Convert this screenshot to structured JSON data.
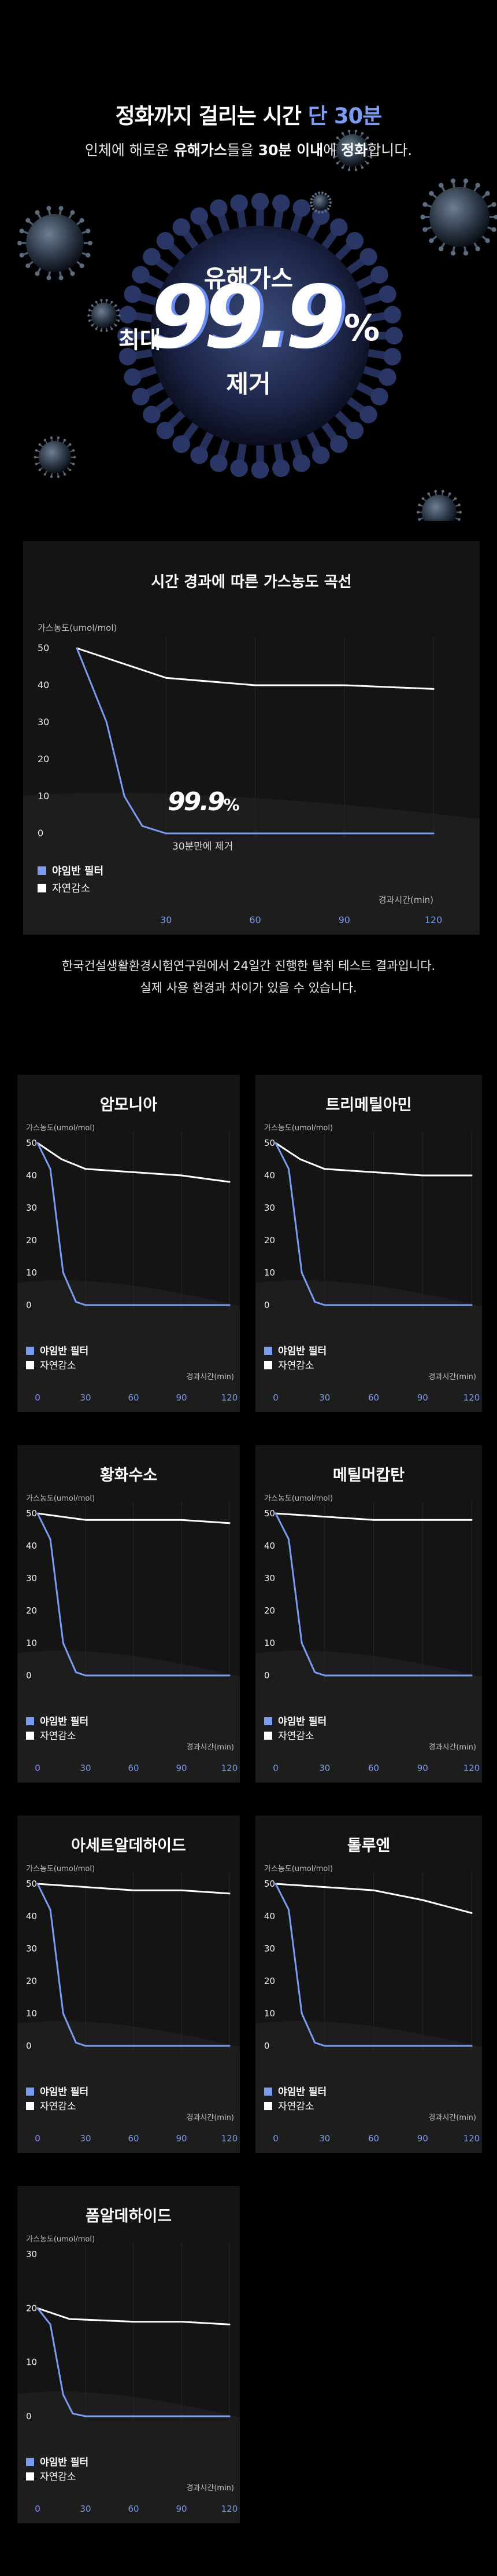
{
  "hero": {
    "title_main": "정화까지 걸리는 시간 ",
    "title_accent": "단 30분",
    "subtitle_pre": "인체에 해로운 ",
    "subtitle_b1": "유해가스",
    "subtitle_mid": "들을 ",
    "subtitle_b2": "30분 이내",
    "subtitle_mid2": "에 ",
    "subtitle_b3": "정화",
    "subtitle_post": "합니다.",
    "big_top": "유해가스",
    "big_left": "최대",
    "big_number": "99.9",
    "big_percent": "%",
    "big_bottom": "제거"
  },
  "main_chart": {
    "title": "시간 경과에 따른 가스농도 곡선",
    "badge_number": "99.9",
    "badge_percent": "%",
    "badge_caption": "30분만에 제거",
    "note_line1": "한국건설생활환경시험연구원에서 24일간 진행한 탈취 테스트 결과입니다.",
    "note_line2": "실제 사용 환경과 차이가 있을 수 있습니다."
  },
  "colors": {
    "filter": "#7b9cf2",
    "natural": "#ffffff",
    "card_bg": "#141414"
  },
  "chart_data": [
    {
      "type": "line",
      "title": "시간 경과에 따른 가스농도 곡선",
      "ylabel": "가스농도(umol/mol)",
      "xlabel": "경과시간(min)",
      "yticks": [
        0,
        10,
        20,
        30,
        40,
        50
      ],
      "xticks": [
        30,
        60,
        90,
        120
      ],
      "ylim": [
        0,
        50
      ],
      "xlim": [
        0,
        120
      ],
      "grid": true,
      "legend": "bottom-left",
      "series": [
        {
          "name": "야임반 필터",
          "points": [
            [
              0,
              50
            ],
            [
              10,
              30
            ],
            [
              16,
              10
            ],
            [
              22,
              2
            ],
            [
              30,
              0
            ],
            [
              60,
              0
            ],
            [
              90,
              0
            ],
            [
              120,
              0
            ]
          ]
        },
        {
          "name": "자연감소",
          "points": [
            [
              0,
              50
            ],
            [
              30,
              42
            ],
            [
              60,
              40
            ],
            [
              90,
              40
            ],
            [
              120,
              39
            ]
          ]
        }
      ]
    },
    {
      "type": "line",
      "title": "암모니아",
      "ylabel": "가스농도(umol/mol)",
      "xlabel": "경과시간(min)",
      "yticks": [
        0,
        10,
        20,
        30,
        40,
        50
      ],
      "xticks": [
        0,
        30,
        60,
        90,
        120
      ],
      "ylim": [
        0,
        50
      ],
      "xlim": [
        0,
        120
      ],
      "grid": true,
      "legend": "bottom-left",
      "series": [
        {
          "name": "야임반 필터",
          "points": [
            [
              0,
              50
            ],
            [
              8,
              42
            ],
            [
              16,
              10
            ],
            [
              24,
              1
            ],
            [
              30,
              0
            ],
            [
              60,
              0
            ],
            [
              90,
              0
            ],
            [
              120,
              0
            ]
          ]
        },
        {
          "name": "자연감소",
          "points": [
            [
              0,
              50
            ],
            [
              15,
              45
            ],
            [
              30,
              42
            ],
            [
              60,
              41
            ],
            [
              90,
              40
            ],
            [
              120,
              38
            ]
          ]
        }
      ]
    },
    {
      "type": "line",
      "title": "트리메틸아민",
      "ylabel": "가스농도(umol/mol)",
      "xlabel": "경과시간(min)",
      "yticks": [
        0,
        10,
        20,
        30,
        40,
        50
      ],
      "xticks": [
        0,
        30,
        60,
        90,
        120
      ],
      "ylim": [
        0,
        50
      ],
      "xlim": [
        0,
        120
      ],
      "grid": true,
      "legend": "bottom-left",
      "series": [
        {
          "name": "야임반 필터",
          "points": [
            [
              0,
              50
            ],
            [
              8,
              42
            ],
            [
              16,
              10
            ],
            [
              24,
              1
            ],
            [
              30,
              0
            ],
            [
              60,
              0
            ],
            [
              90,
              0
            ],
            [
              120,
              0
            ]
          ]
        },
        {
          "name": "자연감소",
          "points": [
            [
              0,
              50
            ],
            [
              15,
              45
            ],
            [
              30,
              42
            ],
            [
              60,
              41
            ],
            [
              90,
              40
            ],
            [
              120,
              40
            ]
          ]
        }
      ]
    },
    {
      "type": "line",
      "title": "황화수소",
      "ylabel": "가스농도(umol/mol)",
      "xlabel": "경과시간(min)",
      "yticks": [
        0,
        10,
        20,
        30,
        40,
        50
      ],
      "xticks": [
        0,
        30,
        60,
        90,
        120
      ],
      "ylim": [
        0,
        50
      ],
      "xlim": [
        0,
        120
      ],
      "grid": true,
      "legend": "bottom-left",
      "series": [
        {
          "name": "야임반 필터",
          "points": [
            [
              0,
              50
            ],
            [
              8,
              42
            ],
            [
              16,
              10
            ],
            [
              24,
              1
            ],
            [
              30,
              0
            ],
            [
              60,
              0
            ],
            [
              90,
              0
            ],
            [
              120,
              0
            ]
          ]
        },
        {
          "name": "자연감소",
          "points": [
            [
              0,
              50
            ],
            [
              30,
              48
            ],
            [
              60,
              48
            ],
            [
              90,
              48
            ],
            [
              120,
              47
            ]
          ]
        }
      ]
    },
    {
      "type": "line",
      "title": "메틸머캅탄",
      "ylabel": "가스농도(umol/mol)",
      "xlabel": "경과시간(min)",
      "yticks": [
        0,
        10,
        20,
        30,
        40,
        50
      ],
      "xticks": [
        0,
        30,
        60,
        90,
        120
      ],
      "ylim": [
        0,
        50
      ],
      "xlim": [
        0,
        120
      ],
      "grid": true,
      "legend": "bottom-left",
      "series": [
        {
          "name": "야임반 필터",
          "points": [
            [
              0,
              50
            ],
            [
              8,
              42
            ],
            [
              16,
              10
            ],
            [
              24,
              1
            ],
            [
              30,
              0
            ],
            [
              60,
              0
            ],
            [
              90,
              0
            ],
            [
              120,
              0
            ]
          ]
        },
        {
          "name": "자연감소",
          "points": [
            [
              0,
              50
            ],
            [
              30,
              49
            ],
            [
              60,
              48
            ],
            [
              90,
              48
            ],
            [
              120,
              48
            ]
          ]
        }
      ]
    },
    {
      "type": "line",
      "title": "아세트알데하이드",
      "ylabel": "가스농도(umol/mol)",
      "xlabel": "경과시간(min)",
      "yticks": [
        0,
        10,
        20,
        30,
        40,
        50
      ],
      "xticks": [
        0,
        30,
        60,
        90,
        120
      ],
      "ylim": [
        0,
        50
      ],
      "xlim": [
        0,
        120
      ],
      "grid": true,
      "legend": "bottom-left",
      "series": [
        {
          "name": "야임반 필터",
          "points": [
            [
              0,
              50
            ],
            [
              8,
              42
            ],
            [
              16,
              10
            ],
            [
              24,
              1
            ],
            [
              30,
              0
            ],
            [
              60,
              0
            ],
            [
              90,
              0
            ],
            [
              120,
              0
            ]
          ]
        },
        {
          "name": "자연감소",
          "points": [
            [
              0,
              50
            ],
            [
              30,
              49
            ],
            [
              60,
              48
            ],
            [
              90,
              48
            ],
            [
              120,
              47
            ]
          ]
        }
      ]
    },
    {
      "type": "line",
      "title": "톨루엔",
      "ylabel": "가스농도(umol/mol)",
      "xlabel": "경과시간(min)",
      "yticks": [
        0,
        10,
        20,
        30,
        40,
        50
      ],
      "xticks": [
        0,
        30,
        60,
        90,
        120
      ],
      "ylim": [
        0,
        50
      ],
      "xlim": [
        0,
        120
      ],
      "grid": true,
      "legend": "bottom-left",
      "series": [
        {
          "name": "야임반 필터",
          "points": [
            [
              0,
              50
            ],
            [
              8,
              42
            ],
            [
              16,
              10
            ],
            [
              24,
              1
            ],
            [
              30,
              0
            ],
            [
              60,
              0
            ],
            [
              90,
              0
            ],
            [
              120,
              0
            ]
          ]
        },
        {
          "name": "자연감소",
          "points": [
            [
              0,
              50
            ],
            [
              30,
              49
            ],
            [
              60,
              48
            ],
            [
              90,
              45
            ],
            [
              120,
              41
            ]
          ]
        }
      ]
    },
    {
      "type": "line",
      "title": "폼알데하이드",
      "ylabel": "가스농도(umol/mol)",
      "xlabel": "경과시간(min)",
      "yticks": [
        0,
        10,
        20,
        30
      ],
      "xticks": [
        0,
        30,
        60,
        90,
        120
      ],
      "ylim": [
        0,
        30
      ],
      "xlim": [
        0,
        120
      ],
      "grid": true,
      "legend": "bottom-left",
      "series": [
        {
          "name": "야임반 필터",
          "points": [
            [
              0,
              20
            ],
            [
              8,
              17
            ],
            [
              16,
              4
            ],
            [
              22,
              0.5
            ],
            [
              30,
              0
            ],
            [
              60,
              0
            ],
            [
              90,
              0
            ],
            [
              120,
              0
            ]
          ]
        },
        {
          "name": "자연감소",
          "points": [
            [
              0,
              20
            ],
            [
              20,
              18
            ],
            [
              60,
              17.5
            ],
            [
              90,
              17.5
            ],
            [
              120,
              17
            ]
          ]
        }
      ]
    }
  ]
}
